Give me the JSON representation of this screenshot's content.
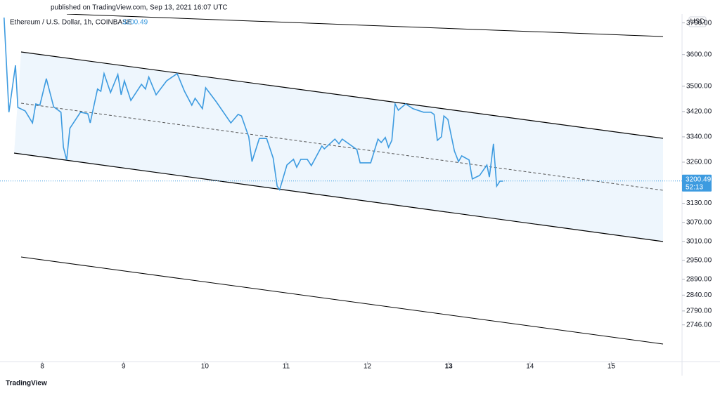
{
  "header": {
    "published": "published on TradingView.com, Sep 13, 2021 16:07 UTC"
  },
  "footer": {
    "logo": "TradingView"
  },
  "chart_data": {
    "type": "line",
    "currency": "USD",
    "last_price": 3200.49,
    "countdown": "52:13",
    "series": [
      {
        "name": "Ethereum / U.S. Dollar, 1h, COINBASE",
        "color": "#3d9be0",
        "values": [
          3717,
          3418,
          3566,
          3433,
          3422,
          3384,
          3444,
          3440,
          3524,
          3435,
          3418,
          3307,
          3267,
          3367,
          3418,
          3413,
          3384,
          3491,
          3484,
          3540,
          3480,
          3537,
          3473,
          3517,
          3455,
          3506,
          3491,
          3529,
          3473,
          3517,
          3540,
          3484,
          3440,
          3462,
          3429,
          3495,
          3451,
          3384,
          3411,
          3406,
          3340,
          3262,
          3335,
          3335,
          3273,
          3184,
          3173,
          3251,
          3269,
          3244,
          3269,
          3269,
          3249,
          3311,
          3302,
          3333,
          3318,
          3333,
          3300,
          3258,
          3258,
          3333,
          3322,
          3338,
          3307,
          3329,
          3444,
          3424,
          3444,
          3429,
          3418,
          3418,
          3411,
          3329,
          3340,
          3406,
          3395,
          3295,
          3262,
          3280,
          3267,
          3207,
          3218,
          3251,
          3213,
          3318,
          3184,
          3200,
          3200
        ]
      }
    ],
    "x": [
      7.53,
      7.59,
      7.67,
      7.7,
      7.79,
      7.88,
      7.92,
      7.97,
      8.05,
      8.14,
      8.23,
      8.26,
      8.3,
      8.34,
      8.47,
      8.56,
      8.59,
      8.68,
      8.72,
      8.76,
      8.84,
      8.93,
      8.97,
      9.01,
      9.09,
      9.22,
      9.27,
      9.31,
      9.4,
      9.53,
      9.66,
      9.75,
      9.84,
      9.88,
      9.97,
      10.01,
      10.14,
      10.32,
      10.41,
      10.45,
      10.54,
      10.58,
      10.67,
      10.76,
      10.84,
      10.89,
      10.92,
      11.01,
      11.09,
      11.13,
      11.18,
      11.26,
      11.31,
      11.44,
      11.47,
      11.6,
      11.65,
      11.69,
      11.87,
      11.91,
      12.04,
      12.13,
      12.17,
      12.22,
      12.26,
      12.3,
      12.34,
      12.38,
      12.47,
      12.56,
      12.69,
      12.78,
      12.82,
      12.86,
      12.91,
      12.94,
      12.99,
      13.07,
      13.12,
      13.16,
      13.25,
      13.29,
      13.38,
      13.47,
      13.5,
      13.55,
      13.59,
      13.63,
      13.67
    ],
    "xlim": [
      7.48,
      15.87
    ],
    "xticks": [
      8,
      9,
      10,
      11,
      12,
      13,
      14,
      15
    ],
    "ylim": [
      2630,
      3728
    ],
    "yticks": [
      {
        "value": 3700,
        "label": "3700.00"
      },
      {
        "value": 3600,
        "label": "3600.00"
      },
      {
        "value": 3500,
        "label": "3500.00"
      },
      {
        "value": 3420,
        "label": "3420.00"
      },
      {
        "value": 3340,
        "label": "3340.00"
      },
      {
        "value": 3260,
        "label": "3260.00"
      },
      {
        "value": 3130,
        "label": "3130.00"
      },
      {
        "value": 3070,
        "label": "3070.00"
      },
      {
        "value": 3010,
        "label": "3010.00"
      },
      {
        "value": 2950,
        "label": "2950.00"
      },
      {
        "value": 2890,
        "label": "2890.00"
      },
      {
        "value": 2840,
        "label": "2840.00"
      },
      {
        "value": 2790,
        "label": "2790.00"
      },
      {
        "value": 2746,
        "label": "2746.00"
      }
    ]
  }
}
